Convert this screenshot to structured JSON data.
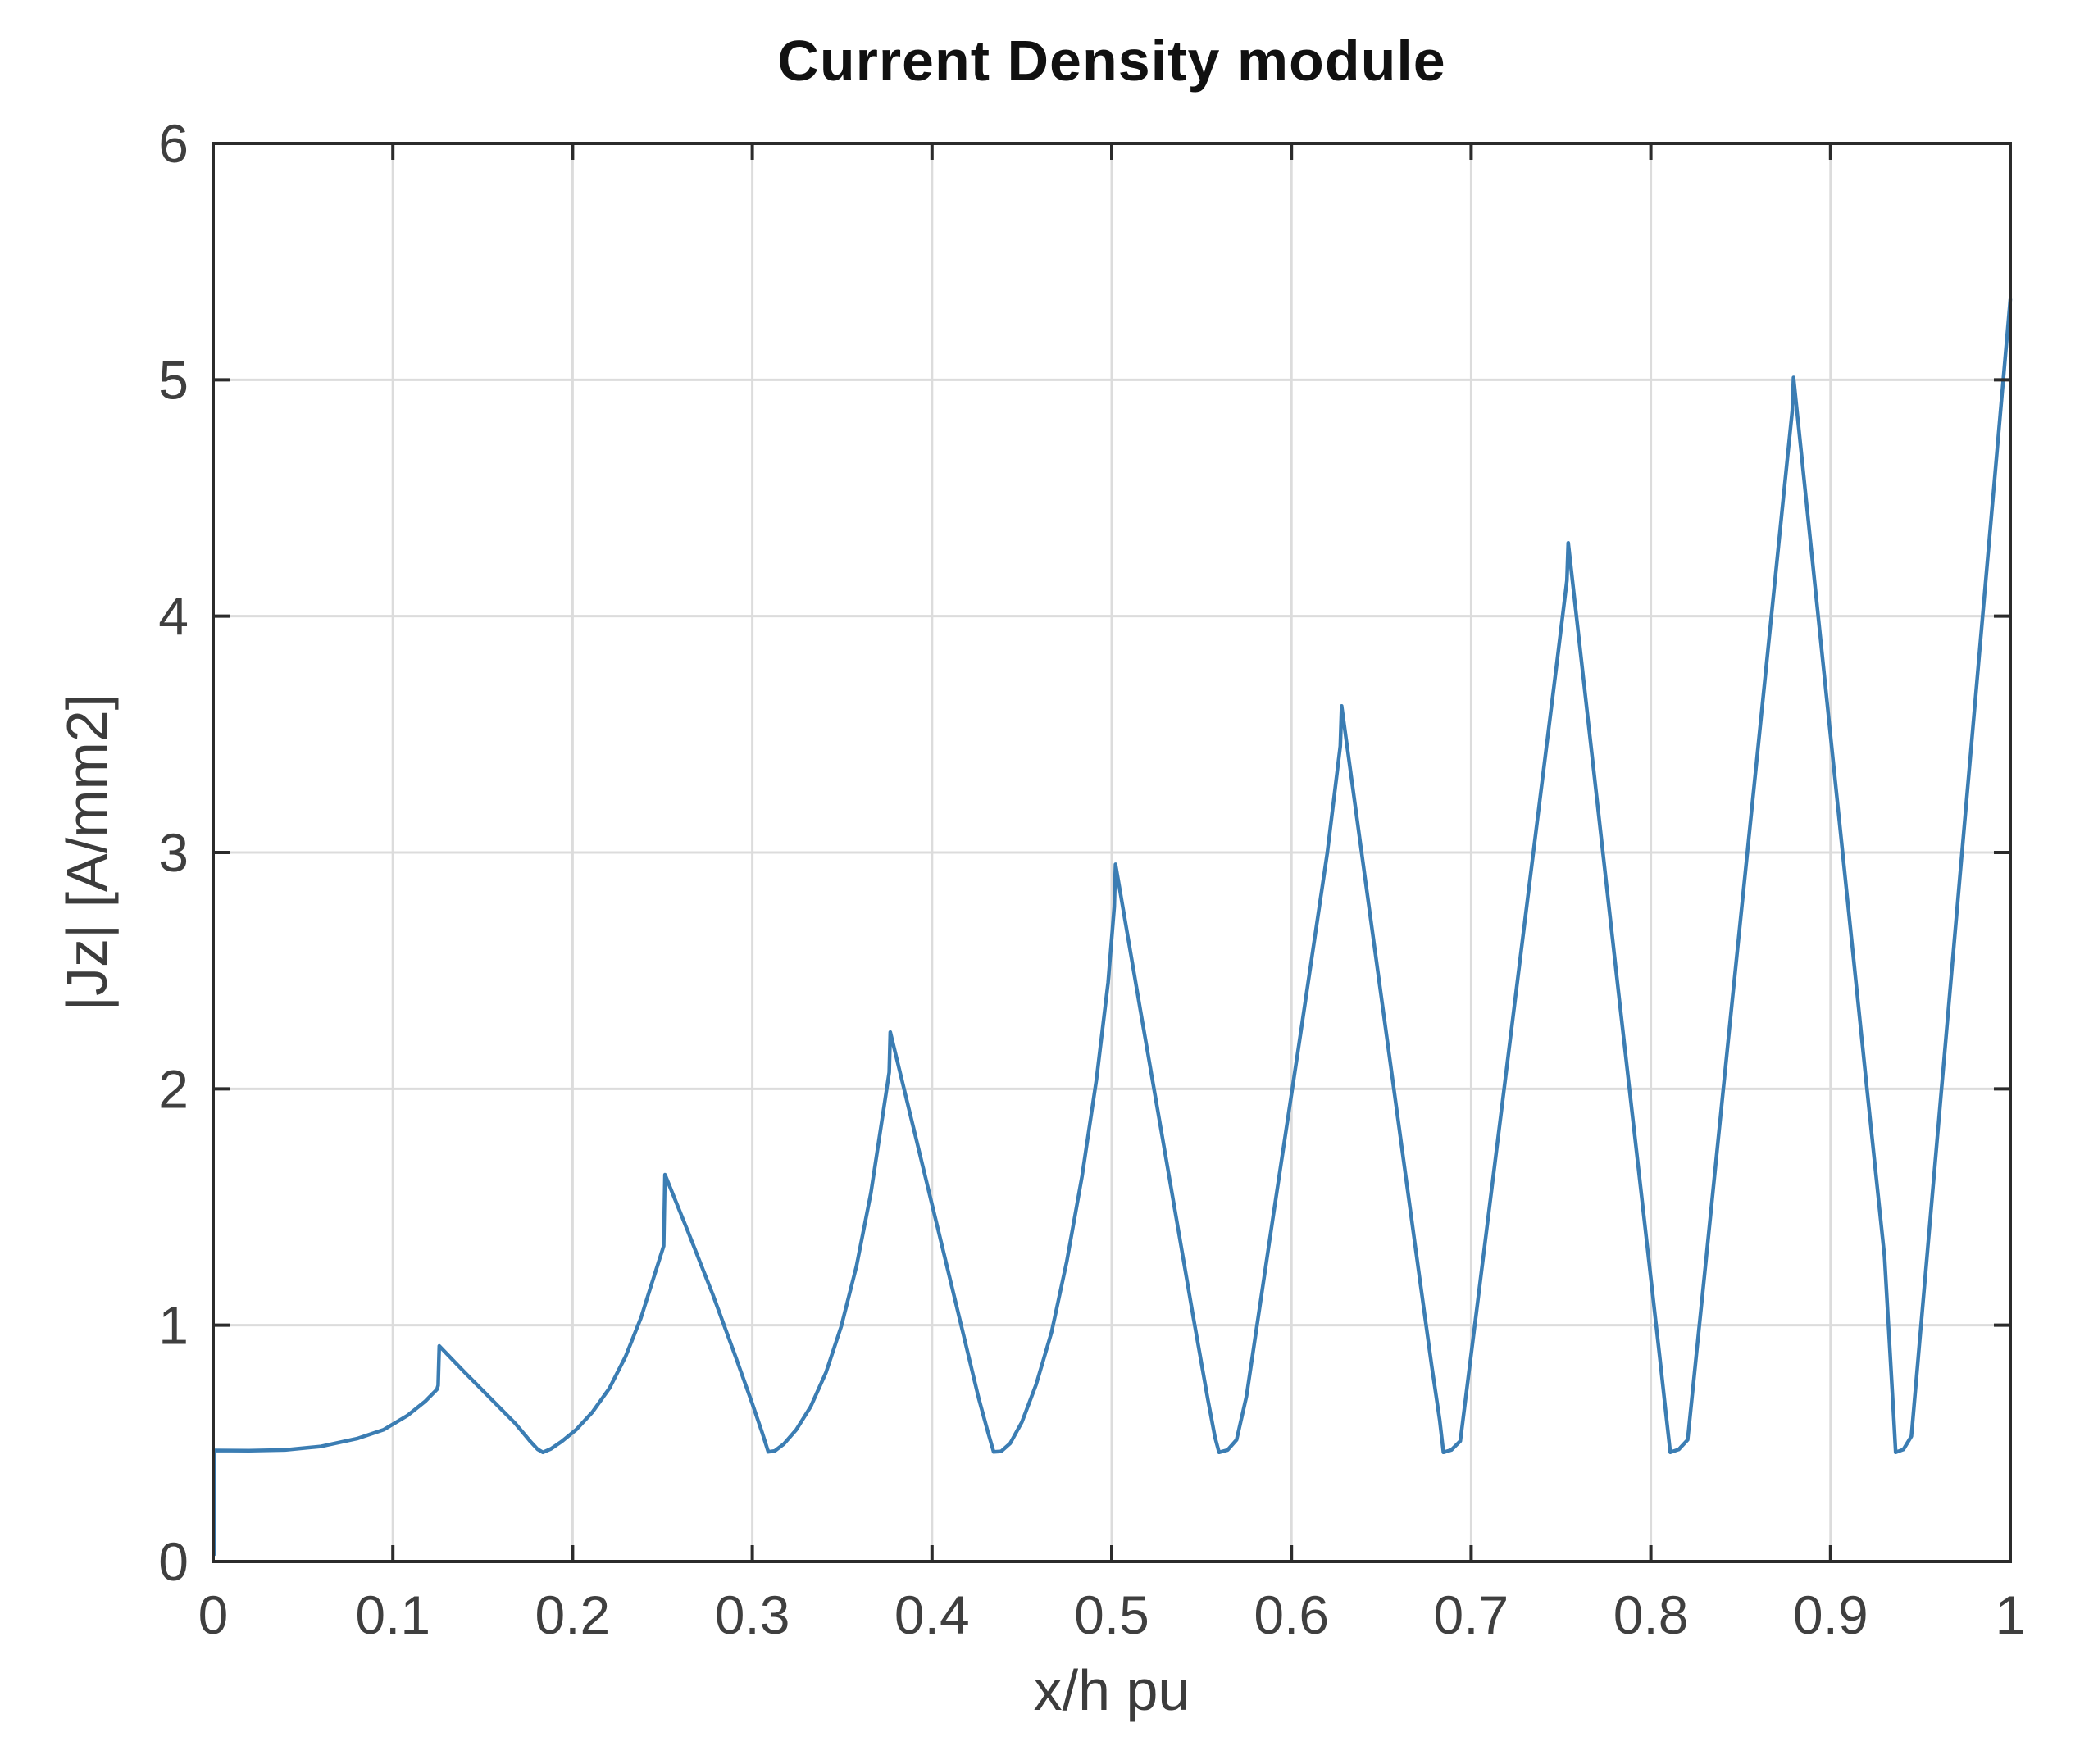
{
  "chart_data": {
    "type": "line",
    "title": "Current Density module",
    "xlabel": "x/h pu",
    "ylabel": "|Jz| [A/mm2]",
    "xlim": [
      0,
      1
    ],
    "ylim": [
      0,
      6
    ],
    "grid": true,
    "legend": "none",
    "x_ticks": [
      0,
      0.1,
      0.2,
      0.3,
      0.4,
      0.5,
      0.6,
      0.7,
      0.8,
      0.9,
      1
    ],
    "x_tick_labels": [
      "0",
      "0.1",
      "0.2",
      "0.3",
      "0.4",
      "0.5",
      "0.6",
      "0.7",
      "0.8",
      "0.9",
      "1"
    ],
    "y_ticks": [
      0,
      1,
      2,
      3,
      4,
      5,
      6
    ],
    "y_tick_labels": [
      "0",
      "1",
      "2",
      "3",
      "4",
      "5",
      "6"
    ],
    "line_color": "#3b7db3",
    "grid_color": "#dcdcdc",
    "axis_color": "#2b2b2b",
    "peak_x": [
      0.125,
      0.25,
      0.375,
      0.5,
      0.625,
      0.75,
      0.875
    ],
    "peak_values": [
      0.91,
      1.64,
      2.24,
      2.95,
      3.62,
      4.31,
      5.01
    ],
    "valley_value": 0.46,
    "endpoint": [
      1.0,
      5.34
    ],
    "series": [
      {
        "name": "|Jz|",
        "points": [
          [
            0.0005,
            0.03
          ],
          [
            0.0008,
            0.47
          ],
          [
            0.02,
            0.469
          ],
          [
            0.04,
            0.472
          ],
          [
            0.06,
            0.487
          ],
          [
            0.08,
            0.52
          ],
          [
            0.095,
            0.558
          ],
          [
            0.108,
            0.617
          ],
          [
            0.118,
            0.678
          ],
          [
            0.1245,
            0.728
          ],
          [
            0.1252,
            0.745
          ],
          [
            0.1258,
            0.912
          ],
          [
            0.14,
            0.8
          ],
          [
            0.155,
            0.685
          ],
          [
            0.168,
            0.585
          ],
          [
            0.1765,
            0.508
          ],
          [
            0.1805,
            0.475
          ],
          [
            0.1835,
            0.462
          ],
          [
            0.188,
            0.477
          ],
          [
            0.194,
            0.508
          ],
          [
            0.202,
            0.558
          ],
          [
            0.211,
            0.632
          ],
          [
            0.2205,
            0.733
          ],
          [
            0.2295,
            0.868
          ],
          [
            0.238,
            1.03
          ],
          [
            0.2455,
            1.21
          ],
          [
            0.2507,
            1.335
          ],
          [
            0.2514,
            1.637
          ],
          [
            0.264,
            1.4
          ],
          [
            0.278,
            1.13
          ],
          [
            0.291,
            0.86
          ],
          [
            0.3,
            0.668
          ],
          [
            0.3055,
            0.545
          ],
          [
            0.3089,
            0.464
          ],
          [
            0.3125,
            0.468
          ],
          [
            0.3175,
            0.497
          ],
          [
            0.3245,
            0.558
          ],
          [
            0.3325,
            0.655
          ],
          [
            0.341,
            0.8
          ],
          [
            0.3495,
            0.995
          ],
          [
            0.358,
            1.25
          ],
          [
            0.366,
            1.56
          ],
          [
            0.3728,
            1.9
          ],
          [
            0.3762,
            2.07
          ],
          [
            0.3768,
            2.24
          ],
          [
            0.39,
            1.825
          ],
          [
            0.404,
            1.385
          ],
          [
            0.417,
            0.975
          ],
          [
            0.426,
            0.69
          ],
          [
            0.431,
            0.55
          ],
          [
            0.4343,
            0.464
          ],
          [
            0.4385,
            0.466
          ],
          [
            0.4435,
            0.5
          ],
          [
            0.45,
            0.59
          ],
          [
            0.458,
            0.75
          ],
          [
            0.4665,
            0.97
          ],
          [
            0.475,
            1.27
          ],
          [
            0.4835,
            1.63
          ],
          [
            0.4915,
            2.04
          ],
          [
            0.498,
            2.45
          ],
          [
            0.5014,
            2.77
          ],
          [
            0.5021,
            2.95
          ],
          [
            0.516,
            2.33
          ],
          [
            0.531,
            1.67
          ],
          [
            0.5455,
            1.03
          ],
          [
            0.5535,
            0.685
          ],
          [
            0.5575,
            0.525
          ],
          [
            0.5597,
            0.462
          ],
          [
            0.5645,
            0.472
          ],
          [
            0.5695,
            0.515
          ],
          [
            0.575,
            0.7
          ],
          [
            0.59,
            1.47
          ],
          [
            0.605,
            2.23
          ],
          [
            0.62,
            3.0
          ],
          [
            0.6272,
            3.45
          ],
          [
            0.6279,
            3.62
          ],
          [
            0.641,
            2.89
          ],
          [
            0.655,
            2.11
          ],
          [
            0.669,
            1.33
          ],
          [
            0.678,
            0.83
          ],
          [
            0.6825,
            0.6
          ],
          [
            0.6846,
            0.462
          ],
          [
            0.689,
            0.472
          ],
          [
            0.694,
            0.51
          ],
          [
            0.703,
            1.06
          ],
          [
            0.718,
            1.98
          ],
          [
            0.733,
            2.9
          ],
          [
            0.748,
            3.82
          ],
          [
            0.7533,
            4.15
          ],
          [
            0.754,
            4.31
          ],
          [
            0.768,
            3.36
          ],
          [
            0.782,
            2.41
          ],
          [
            0.796,
            1.47
          ],
          [
            0.805,
            0.86
          ],
          [
            0.8085,
            0.62
          ],
          [
            0.8108,
            0.462
          ],
          [
            0.8155,
            0.474
          ],
          [
            0.8205,
            0.515
          ],
          [
            0.83,
            1.225
          ],
          [
            0.845,
            2.35
          ],
          [
            0.86,
            3.47
          ],
          [
            0.874,
            4.52
          ],
          [
            0.8787,
            4.87
          ],
          [
            0.8794,
            5.01
          ],
          [
            0.892,
            4.08
          ],
          [
            0.906,
            3.05
          ],
          [
            0.92,
            2.02
          ],
          [
            0.93,
            1.29
          ],
          [
            0.9345,
            0.7
          ],
          [
            0.9362,
            0.462
          ],
          [
            0.9405,
            0.474
          ],
          [
            0.945,
            0.53
          ],
          [
            0.958,
            1.67
          ],
          [
            0.972,
            2.9
          ],
          [
            0.986,
            4.12
          ],
          [
            1.0,
            5.34
          ]
        ]
      }
    ]
  }
}
